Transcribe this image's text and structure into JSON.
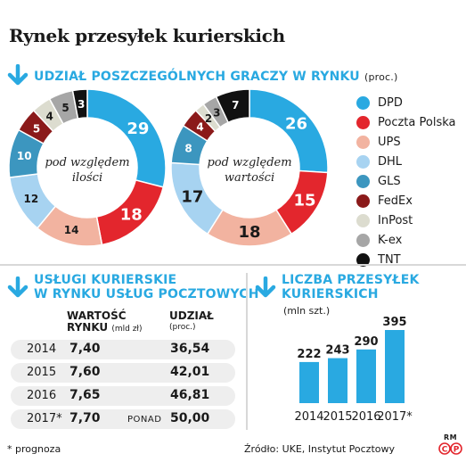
{
  "title": "Rynek przesyłek kurierskich",
  "section1": {
    "heading": "UDZIAŁ POSZCZEGÓLNYCH GRACZY W RYNKU",
    "unit": "(proc.)"
  },
  "section2": {
    "heading_line1": "USŁUGI KURIERSKIE",
    "heading_line2": "W RYNKU USŁUG POCZTOWYCH"
  },
  "section3": {
    "heading_line1": "LICZBA PRZESYŁEK",
    "heading_line2": "KURIERSKICH",
    "unit": "(mln szt.)"
  },
  "table": {
    "col_value_line1": "WARTOŚĆ",
    "col_value_line2": "RYNKU",
    "col_value_unit": "(mld zł)",
    "col_share_line1": "UDZIAŁ",
    "col_share_unit": "(proc.)",
    "rows": [
      {
        "year": "2014",
        "value": "7,40",
        "note": "",
        "share": "36,54"
      },
      {
        "year": "2015",
        "value": "7,60",
        "note": "",
        "share": "42,01"
      },
      {
        "year": "2016",
        "value": "7,65",
        "note": "",
        "share": "46,81"
      },
      {
        "year": "2017*",
        "value": "7,70",
        "note": "PONAD",
        "share": "50,00"
      }
    ]
  },
  "footer": {
    "note": "* prognoza",
    "source": "Źródło: UKE, Instytut Pocztowy",
    "credit_top": "RM",
    "credit_bottom": "CP"
  },
  "colors": {
    "accent": "#29a9e1",
    "bar": "#29a9e1",
    "row_bg": "#eeeeee"
  },
  "chart_data": [
    {
      "type": "pie",
      "variant": "donut",
      "center_label_line1": "pod względem",
      "center_label_line2": "ilości",
      "categories": [
        "DPD",
        "Poczta Polska",
        "UPS",
        "DHL",
        "GLS",
        "FedEx",
        "InPost",
        "K-ex",
        "TNT"
      ],
      "values": [
        29,
        18,
        14,
        12,
        10,
        5,
        4,
        5,
        3
      ],
      "colors": [
        "#29a9e1",
        "#e3262d",
        "#f2b3a0",
        "#a7d3f1",
        "#3c96bf",
        "#8b1a1a",
        "#dcdccf",
        "#a6a6a6",
        "#111111"
      ]
    },
    {
      "type": "pie",
      "variant": "donut",
      "center_label_line1": "pod względem",
      "center_label_line2": "wartości",
      "categories": [
        "DPD",
        "Poczta Polska",
        "UPS",
        "DHL",
        "GLS",
        "FedEx",
        "InPost",
        "K-ex",
        "TNT"
      ],
      "values": [
        26,
        15,
        18,
        17,
        8,
        4,
        2,
        3,
        7
      ],
      "colors": [
        "#29a9e1",
        "#e3262d",
        "#f2b3a0",
        "#a7d3f1",
        "#3c96bf",
        "#8b1a1a",
        "#dcdccf",
        "#a6a6a6",
        "#111111"
      ]
    },
    {
      "type": "bar",
      "categories": [
        "2014",
        "2015",
        "2016",
        "2017*"
      ],
      "values": [
        222,
        243,
        290,
        395
      ],
      "color": "#29a9e1"
    }
  ],
  "legend": [
    {
      "label": "DPD",
      "color": "#29a9e1"
    },
    {
      "label": "Poczta Polska",
      "color": "#e3262d"
    },
    {
      "label": "UPS",
      "color": "#f2b3a0"
    },
    {
      "label": "DHL",
      "color": "#a7d3f1"
    },
    {
      "label": "GLS",
      "color": "#3c96bf"
    },
    {
      "label": "FedEx",
      "color": "#8b1a1a"
    },
    {
      "label": "InPost",
      "color": "#dcdccf"
    },
    {
      "label": "K-ex",
      "color": "#a6a6a6"
    },
    {
      "label": "TNT",
      "color": "#111111"
    }
  ]
}
